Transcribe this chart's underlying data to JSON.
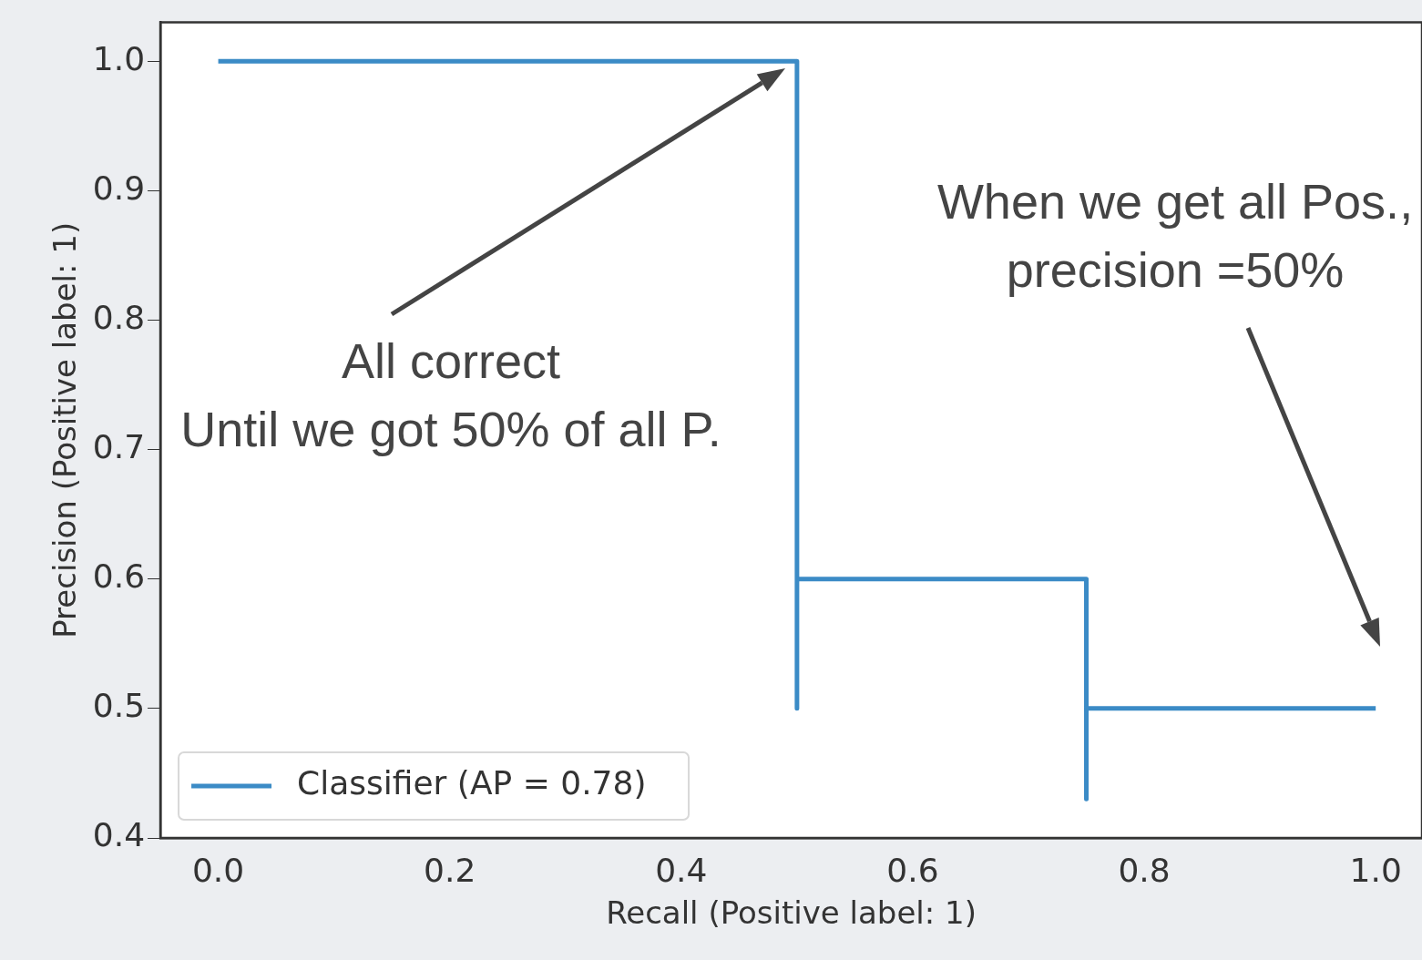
{
  "chart_data": {
    "type": "line",
    "xlabel": "Recall (Positive label: 1)",
    "ylabel": "Precision (Positive label: 1)",
    "series": [
      {
        "name": "Classifier (AP = 0.78)",
        "color": "#3b8bc6",
        "x": [
          0,
          0.5,
          0.5,
          0.5,
          0.75,
          0.75,
          0.75,
          1.0
        ],
        "values": [
          1.0,
          1.0,
          0.5,
          0.6,
          0.6,
          0.43,
          0.5,
          0.5
        ]
      }
    ],
    "xlim": [
      -0.05,
      1.04
    ],
    "ylim": [
      0.4,
      1.03
    ],
    "xticks": [
      {
        "value": 0,
        "label": "0.0"
      },
      {
        "value": 0.2,
        "label": "0.2"
      },
      {
        "value": 0.4,
        "label": "0.4"
      },
      {
        "value": 0.6,
        "label": "0.6"
      },
      {
        "value": 0.8,
        "label": "0.8"
      },
      {
        "value": 1.0,
        "label": "1.0"
      }
    ],
    "yticks": [
      {
        "value": 0.4,
        "label": "0.4"
      },
      {
        "value": 0.5,
        "label": "0.5"
      },
      {
        "value": 0.6,
        "label": "0.6"
      },
      {
        "value": 0.7,
        "label": "0.7"
      },
      {
        "value": 0.8,
        "label": "0.8"
      },
      {
        "value": 0.9,
        "label": "0.9"
      },
      {
        "value": 1.0,
        "label": "1.0"
      }
    ],
    "annotations": [
      "All correct\nUntil we got 50% of all P.",
      "When we get all Pos.,\nprecision =50%"
    ],
    "legend": "bottom left",
    "grid": false,
    "marker": "none",
    "line_style": "solid"
  }
}
